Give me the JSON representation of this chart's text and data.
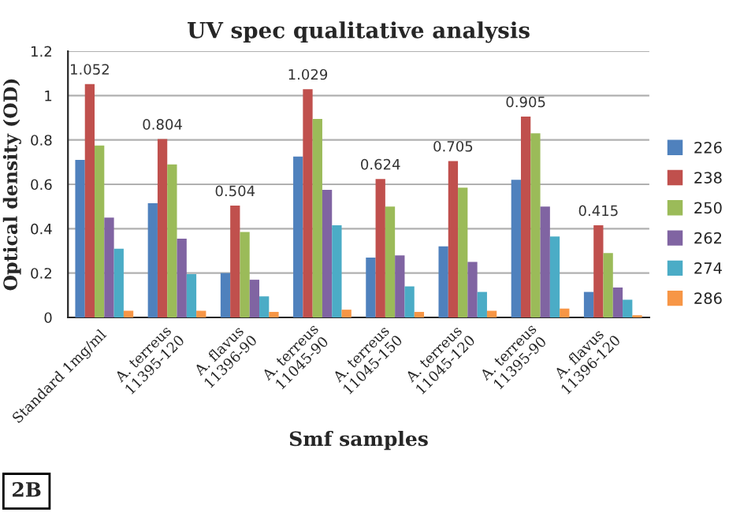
{
  "chart_data": {
    "type": "bar",
    "title": "UV spec qualitative analysis",
    "xlabel": "Smf samples",
    "ylabel": "Optical density (OD)",
    "categories": [
      "Standard 1mg/ml",
      "A. terreus\n11395-120",
      "A. flavus\n11396-90",
      "A. terreus\n11045-90",
      "A. terreus\n11045-150",
      "A. terreus\n11045-120",
      "A. terreus\n11395-90",
      "A. flavus\n11396-120"
    ],
    "series": [
      {
        "name": "226",
        "color": "#4f81bd",
        "values": [
          0.71,
          0.515,
          0.2,
          0.725,
          0.27,
          0.32,
          0.62,
          0.115
        ]
      },
      {
        "name": "238",
        "color": "#c0504d",
        "values": [
          1.052,
          0.804,
          0.504,
          1.029,
          0.624,
          0.705,
          0.905,
          0.415
        ],
        "value_labels": [
          "1.052",
          "0.804",
          "0.504",
          "1.029",
          "0.624",
          "0.705",
          "0.905",
          "0.415"
        ]
      },
      {
        "name": "250",
        "color": "#9bbb59",
        "values": [
          0.775,
          0.69,
          0.385,
          0.895,
          0.5,
          0.585,
          0.83,
          0.29
        ]
      },
      {
        "name": "262",
        "color": "#8064a2",
        "values": [
          0.45,
          0.355,
          0.17,
          0.575,
          0.28,
          0.25,
          0.5,
          0.135
        ]
      },
      {
        "name": "274",
        "color": "#4bacc6",
        "values": [
          0.31,
          0.195,
          0.095,
          0.415,
          0.14,
          0.115,
          0.365,
          0.08
        ]
      },
      {
        "name": "286",
        "color": "#f79646",
        "values": [
          0.03,
          0.03,
          0.025,
          0.035,
          0.025,
          0.03,
          0.04,
          0.01
        ]
      }
    ],
    "ylim": [
      0,
      1.2
    ],
    "yticks": [
      0,
      0.2,
      0.4,
      0.6,
      0.8,
      1,
      1.2
    ],
    "grid": "y",
    "legend": "right",
    "annotations": [
      "2B"
    ]
  }
}
